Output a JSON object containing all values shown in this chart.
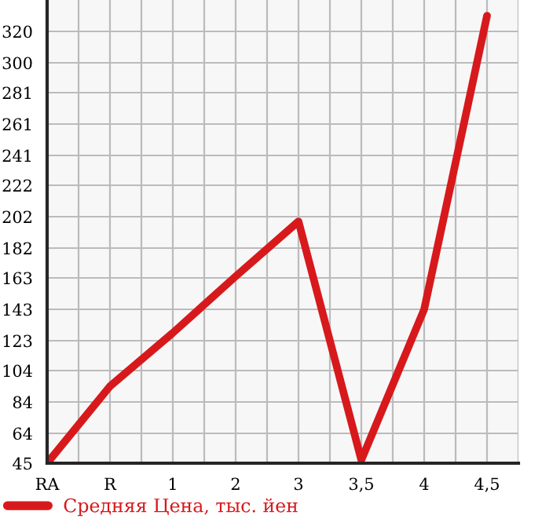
{
  "chart_data": {
    "type": "line",
    "categories": [
      "RA",
      "R",
      "1",
      "2",
      "3",
      "3,5",
      "4",
      "4,5"
    ],
    "series": [
      {
        "name": "Средняя Цена, тыс. йен",
        "color": "#d7191c",
        "values": [
          45,
          94,
          128,
          164,
          199,
          47,
          143,
          330
        ]
      }
    ],
    "ylim": [
      45,
      340
    ],
    "yticks": [
      45,
      64,
      84,
      104,
      123,
      143,
      163,
      182,
      202,
      222,
      241,
      261,
      281,
      300,
      320
    ],
    "grid": true,
    "legend": "bottom",
    "marker": "none",
    "line_style": "solid"
  }
}
